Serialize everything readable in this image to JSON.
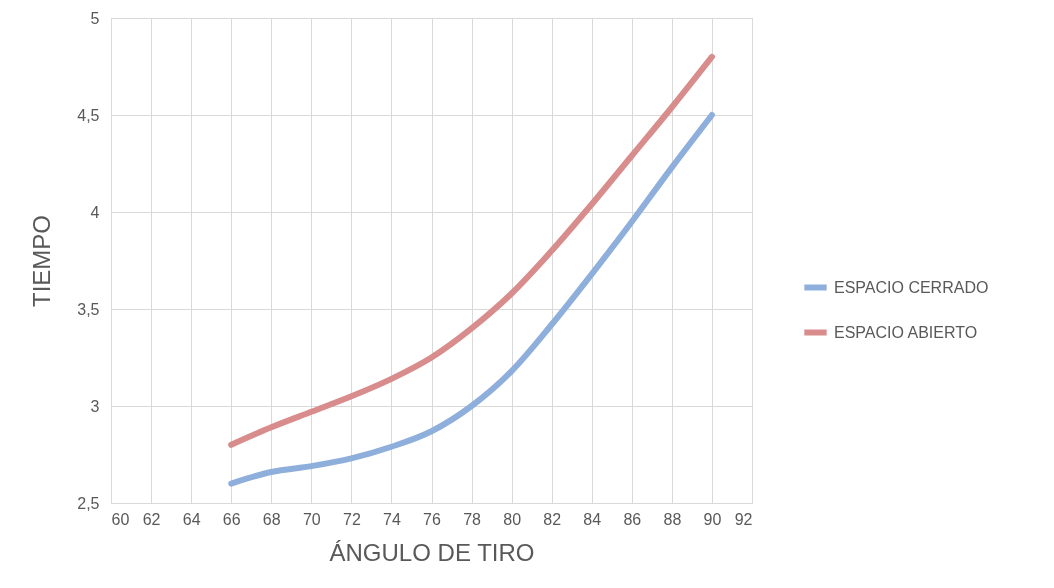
{
  "chart_data": {
    "type": "line",
    "xlabel": "ÁNGULO DE TIRO",
    "ylabel": "TIEMPO",
    "x": [
      66,
      68,
      70,
      72,
      74,
      76,
      78,
      80,
      82,
      84,
      86,
      88,
      90
    ],
    "series": [
      {
        "name": "ESPACIO CERRADO",
        "color": "#8eaedb",
        "values": [
          2.6,
          2.66,
          2.69,
          2.73,
          2.79,
          2.87,
          3.0,
          3.18,
          3.42,
          3.68,
          3.95,
          4.23,
          4.5
        ]
      },
      {
        "name": "ESPACIO ABIERTO",
        "color": "#d88c8c",
        "values": [
          2.8,
          2.89,
          2.97,
          3.05,
          3.14,
          3.25,
          3.4,
          3.58,
          3.8,
          4.04,
          4.29,
          4.54,
          4.8
        ]
      }
    ],
    "xlim": [
      60,
      92
    ],
    "xticks": [
      60,
      62,
      64,
      66,
      68,
      70,
      72,
      74,
      76,
      78,
      80,
      82,
      84,
      86,
      88,
      90,
      92
    ],
    "ylim": [
      2.5,
      5
    ],
    "yticks": [
      {
        "value": 2.5,
        "label": "2,5"
      },
      {
        "value": 3,
        "label": "3"
      },
      {
        "value": 3.5,
        "label": "3,5"
      },
      {
        "value": 4,
        "label": "4"
      },
      {
        "value": 4.5,
        "label": "4,5"
      },
      {
        "value": 5,
        "label": "5"
      }
    ],
    "grid": true,
    "legend": "right",
    "marker": "none",
    "line_style": "solid"
  }
}
